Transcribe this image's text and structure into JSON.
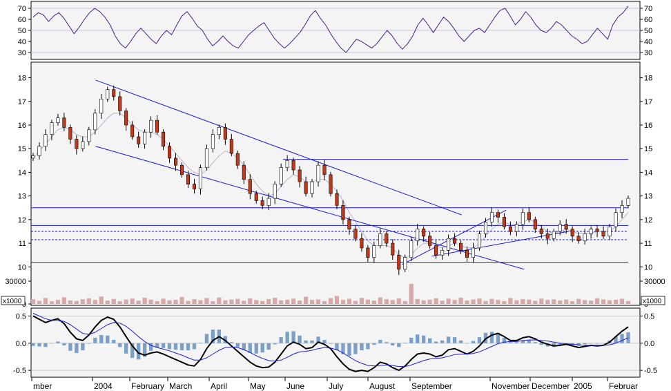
{
  "chart_data": [
    {
      "type": "line",
      "panel": "oscillator-top",
      "ylim": [
        25,
        75
      ],
      "ticks": [
        "70",
        "60",
        "50",
        "40",
        "30"
      ],
      "tick_values": [
        70,
        60,
        50,
        40,
        30
      ],
      "reference_lines": [
        70,
        50,
        30
      ],
      "series": [
        {
          "color": "#4b1a8c",
          "values": [
            62,
            66,
            64,
            58,
            63,
            66,
            61,
            54,
            47,
            53,
            60,
            66,
            70,
            67,
            62,
            55,
            45,
            38,
            34,
            40,
            47,
            52,
            47,
            42,
            38,
            45,
            50,
            46,
            55,
            63,
            67,
            61,
            54,
            50,
            42,
            36,
            40,
            45,
            40,
            36,
            34,
            40,
            46,
            50,
            54,
            57,
            50,
            43,
            38,
            34,
            38,
            43,
            48,
            55,
            63,
            68,
            61,
            55,
            47,
            40,
            34,
            30,
            36,
            42,
            40,
            37,
            34,
            38,
            44,
            50,
            45,
            38,
            33,
            38,
            45,
            55,
            61,
            55,
            48,
            55,
            62,
            58,
            52,
            45,
            40,
            45,
            50,
            52,
            48,
            55,
            62,
            68,
            70,
            63,
            55,
            60,
            67,
            62,
            55,
            50,
            48,
            52,
            58,
            55,
            50,
            45,
            42,
            38,
            40,
            46,
            52,
            47,
            42,
            55,
            62,
            66,
            72
          ]
        }
      ]
    },
    {
      "type": "candlestick",
      "panel": "price",
      "ylim": [
        9.6,
        18.6
      ],
      "ticks": [
        "18",
        "17",
        "16",
        "15",
        "14",
        "13",
        "12",
        "11",
        "10"
      ],
      "tick_values": [
        18,
        17,
        16,
        15,
        14,
        13,
        12,
        11,
        10
      ],
      "x_labels": [
        "mber",
        "2004",
        "February",
        "March",
        "April",
        "May",
        "June",
        "July",
        "August",
        "September",
        "November",
        "December",
        "2005",
        "Februar"
      ],
      "horizontal_lines": [
        {
          "value": 14.55,
          "style": "solid"
        },
        {
          "value": 12.5,
          "style": "solid"
        },
        {
          "value": 11.75,
          "style": "solid"
        },
        {
          "value": 11.5,
          "style": "dashed"
        },
        {
          "value": 11.15,
          "style": "dashed"
        },
        {
          "value": 10.2,
          "style": "solid"
        }
      ],
      "trend_lines": [
        {
          "from": [
            0.105,
            17.9
          ],
          "to": [
            0.72,
            12.2
          ]
        },
        {
          "from": [
            0.105,
            15.1
          ],
          "to": [
            0.825,
            9.9
          ]
        },
        {
          "from": [
            0.62,
            10.1
          ],
          "to": [
            0.795,
            12.4
          ]
        },
        {
          "from": [
            0.67,
            10.45
          ],
          "to": [
            0.9,
            11.5
          ]
        }
      ],
      "close": [
        14.7,
        15.1,
        15.6,
        16.1,
        16.3,
        15.9,
        15.4,
        15.0,
        15.3,
        15.8,
        16.5,
        17.1,
        17.5,
        17.2,
        16.6,
        16.0,
        15.5,
        15.2,
        15.7,
        16.2,
        15.7,
        15.1,
        14.6,
        14.3,
        13.9,
        13.5,
        13.3,
        14.2,
        15.0,
        15.6,
        15.9,
        15.4,
        14.8,
        14.3,
        13.7,
        13.1,
        12.8,
        12.6,
        12.9,
        13.5,
        14.2,
        14.5,
        14.1,
        13.6,
        13.1,
        13.6,
        14.3,
        13.9,
        13.1,
        12.6,
        12.0,
        11.6,
        11.2,
        10.8,
        10.4,
        10.9,
        11.4,
        11.0,
        10.5,
        9.9,
        10.4,
        11.1,
        11.6,
        11.3,
        10.9,
        10.5,
        10.7,
        11.2,
        11.0,
        10.7,
        10.4,
        10.8,
        11.4,
        11.9,
        12.3,
        12.1,
        11.7,
        11.5,
        11.8,
        12.3,
        12.0,
        11.6,
        11.4,
        11.2,
        11.5,
        11.8,
        11.6,
        11.3,
        11.1,
        11.4,
        11.6,
        11.5,
        11.3,
        11.7,
        12.3,
        12.6,
        12.9
      ],
      "moving_average": [
        14.6,
        14.9,
        15.2,
        15.5,
        15.8,
        15.9,
        15.8,
        15.6,
        15.5,
        15.5,
        15.7,
        16.0,
        16.3,
        16.5,
        16.5,
        16.3,
        16.0,
        15.8,
        15.7,
        15.7,
        15.6,
        15.4,
        15.1,
        14.8,
        14.5,
        14.2,
        14.0,
        13.9,
        14.1,
        14.4,
        14.7,
        14.9,
        14.8,
        14.6,
        14.3,
        13.9,
        13.5,
        13.2,
        13.0,
        13.1,
        13.4,
        13.7,
        13.9,
        13.8,
        13.6,
        13.6,
        13.7,
        13.7,
        13.5,
        13.2,
        12.8,
        12.3,
        11.9,
        11.5,
        11.1,
        10.9,
        10.9,
        10.9,
        10.8,
        10.5,
        10.4,
        10.5,
        10.8,
        11.0,
        11.0,
        10.9,
        10.8,
        10.9,
        11.0,
        10.9,
        10.8,
        10.8,
        11.0,
        11.3,
        11.6,
        11.8,
        11.9,
        11.8,
        11.8,
        11.9,
        12.0,
        11.9,
        11.7,
        11.5,
        11.4,
        11.5,
        11.6,
        11.5,
        11.4,
        11.4,
        11.4,
        11.5,
        11.5,
        11.5,
        11.7,
        12.0,
        12.3
      ]
    },
    {
      "type": "bar",
      "panel": "volume",
      "ylim": [
        0,
        40000
      ],
      "ticks": [
        "30000",
        "0"
      ],
      "tick_values": [
        30000,
        0
      ],
      "unit_label": "x1000",
      "values": [
        6200,
        4100,
        7800,
        3500,
        5200,
        8800,
        4600,
        3900,
        6100,
        7400,
        5300,
        9800,
        4400,
        6600,
        3800,
        5900,
        7100,
        4300,
        8200,
        5600,
        3700,
        6900,
        4800,
        5400,
        9200,
        4000,
        6300,
        5000,
        7700,
        3600,
        8500,
        4900,
        5800,
        6700,
        4200,
        7300,
        5100,
        3900,
        6400,
        8100,
        4700,
        5500,
        7000,
        4500,
        9500,
        5200,
        6000,
        3800,
        7600,
        10500,
        5300,
        6800,
        4100,
        7900,
        5700,
        4400,
        8600,
        6200,
        5100,
        7200,
        3900,
        26500,
        6500,
        4800,
        5600,
        7400,
        4300,
        6900,
        5200,
        8300,
        4600,
        5900,
        7100,
        4000,
        6600,
        5400,
        3800,
        7800,
        4900,
        6300,
        5700,
        4200,
        7000,
        5300,
        6100,
        4700,
        5800,
        3600,
        6700,
        5100,
        4500,
        7500,
        6000,
        4900,
        5500,
        6800,
        3900
      ]
    },
    {
      "type": "line",
      "panel": "macd",
      "ylim": [
        -0.6,
        0.62
      ],
      "ticks": [
        "0.5",
        "0.0",
        "-0.5"
      ],
      "tick_values": [
        0.5,
        0.0,
        -0.5
      ],
      "reference_lines": [
        0.5,
        0.0,
        -0.5
      ],
      "series": [
        {
          "name": "",
          "color": "#000000",
          "values": [
            0.5,
            0.44,
            0.38,
            0.42,
            0.45,
            0.36,
            0.2,
            0.08,
            0.05,
            0.15,
            0.3,
            0.42,
            0.48,
            0.44,
            0.3,
            0.12,
            -0.05,
            -0.18,
            -0.22,
            -0.18,
            -0.16,
            -0.2,
            -0.25,
            -0.3,
            -0.35,
            -0.4,
            -0.42,
            -0.3,
            -0.1,
            0.05,
            0.12,
            0.05,
            -0.05,
            -0.15,
            -0.25,
            -0.35,
            -0.42,
            -0.45,
            -0.44,
            -0.35,
            -0.2,
            -0.05,
            0.02,
            -0.02,
            -0.1,
            -0.08,
            0.02,
            -0.02,
            -0.1,
            -0.25,
            -0.38,
            -0.48,
            -0.52,
            -0.5,
            -0.52,
            -0.45,
            -0.35,
            -0.38,
            -0.45,
            -0.5,
            -0.42,
            -0.3,
            -0.2,
            -0.18,
            -0.2,
            -0.25,
            -0.22,
            -0.12,
            -0.1,
            -0.15,
            -0.2,
            -0.15,
            -0.05,
            0.08,
            0.15,
            0.18,
            0.12,
            0.05,
            0.05,
            0.1,
            0.12,
            0.08,
            0.02,
            -0.02,
            -0.05,
            -0.04,
            -0.02,
            -0.05,
            -0.08,
            -0.06,
            -0.04,
            -0.05,
            -0.04,
            0.02,
            0.12,
            0.22,
            0.3
          ]
        },
        {
          "name": "",
          "color": "#1a1ad0",
          "values": [
            0.55,
            0.5,
            0.45,
            0.42,
            0.42,
            0.4,
            0.34,
            0.26,
            0.18,
            0.16,
            0.2,
            0.27,
            0.34,
            0.38,
            0.37,
            0.31,
            0.22,
            0.12,
            0.03,
            -0.04,
            -0.08,
            -0.11,
            -0.14,
            -0.18,
            -0.22,
            -0.27,
            -0.31,
            -0.31,
            -0.27,
            -0.2,
            -0.13,
            -0.08,
            -0.07,
            -0.08,
            -0.12,
            -0.17,
            -0.23,
            -0.28,
            -0.32,
            -0.33,
            -0.31,
            -0.26,
            -0.2,
            -0.16,
            -0.15,
            -0.13,
            -0.1,
            -0.08,
            -0.09,
            -0.12,
            -0.18,
            -0.25,
            -0.32,
            -0.37,
            -0.41,
            -0.42,
            -0.41,
            -0.4,
            -0.41,
            -0.43,
            -0.43,
            -0.4,
            -0.36,
            -0.32,
            -0.29,
            -0.28,
            -0.27,
            -0.24,
            -0.21,
            -0.2,
            -0.2,
            -0.19,
            -0.16,
            -0.11,
            -0.06,
            -0.01,
            0.02,
            0.03,
            0.03,
            0.05,
            0.06,
            0.06,
            0.05,
            0.04,
            0.02,
            0.0,
            -0.01,
            -0.02,
            -0.03,
            -0.04,
            -0.04,
            -0.04,
            -0.04,
            -0.03,
            0.0,
            0.05,
            0.1
          ]
        }
      ],
      "histogram_color": "#7aa0c8"
    }
  ]
}
